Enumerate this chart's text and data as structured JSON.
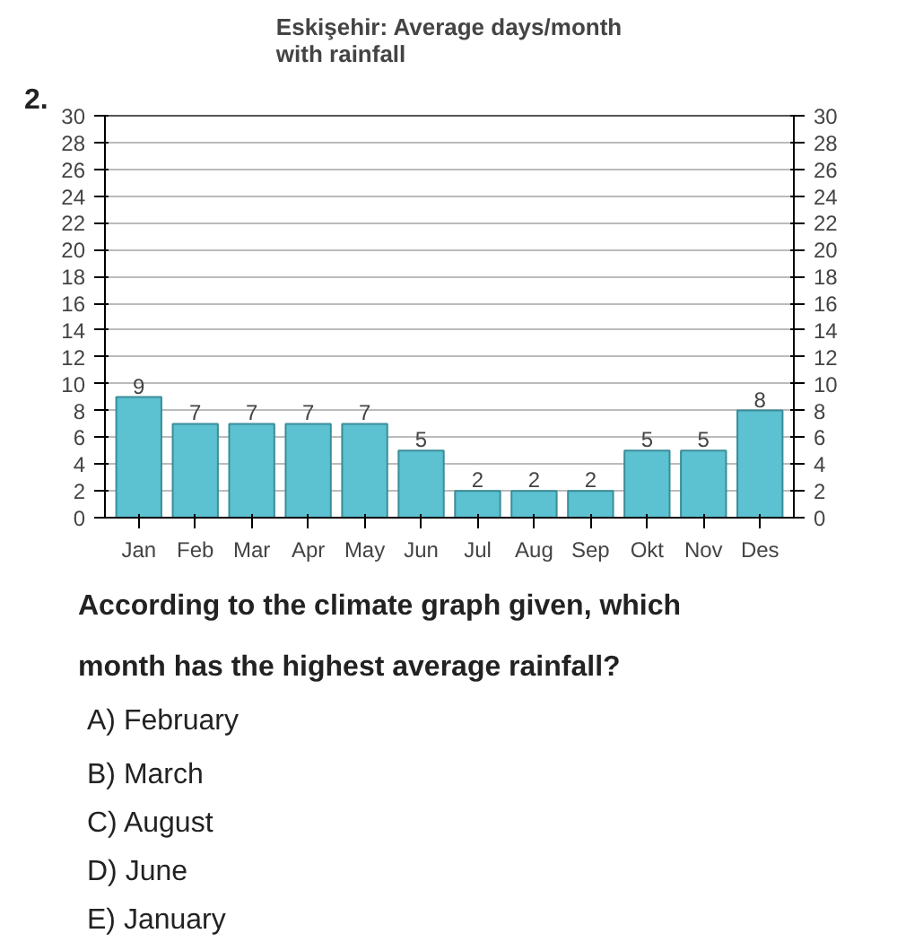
{
  "chart_data": {
    "type": "bar",
    "title": "Eskişehir: Average days/month\nwith rainfall",
    "categories": [
      "Jan",
      "Feb",
      "Mar",
      "Apr",
      "May",
      "Jun",
      "Jul",
      "Aug",
      "Sep",
      "Okt",
      "Nov",
      "Des"
    ],
    "values": [
      9,
      7,
      7,
      7,
      7,
      5,
      2,
      2,
      2,
      5,
      5,
      8
    ],
    "color": "#5cc1d0",
    "data_labels": true,
    "ylim": [
      0,
      30
    ],
    "yticks": [
      0,
      2,
      4,
      6,
      8,
      10,
      12,
      14,
      16,
      18,
      20,
      22,
      24,
      26,
      28,
      30
    ],
    "y2lim": [
      0,
      30
    ],
    "y2ticks": [
      0,
      2,
      4,
      6,
      8,
      10,
      12,
      14,
      16,
      18,
      20,
      22,
      24,
      26,
      28,
      30
    ],
    "grid": "y",
    "annotations": [
      "2.",
      "According to the climate graph given, which",
      "month has the highest average rainfall?",
      "A)   February",
      "B)   March",
      "C)   August",
      "D)   June",
      "E)   January"
    ]
  }
}
